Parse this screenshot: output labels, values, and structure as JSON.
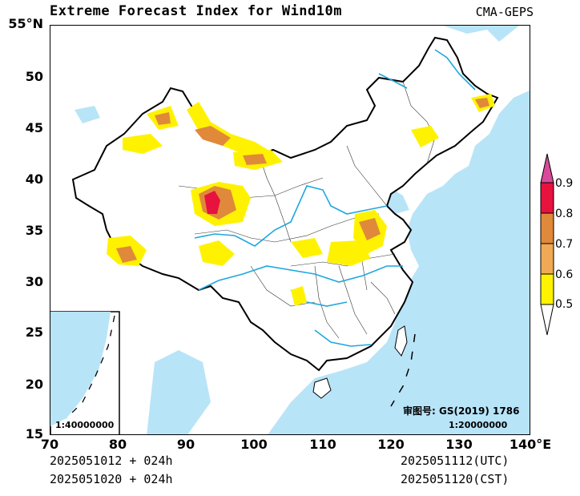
{
  "title": "Extreme Forecast Index for Wind10m",
  "model": "CMA-GEPS",
  "axes": {
    "lat_ticks": [
      "55°N",
      "50",
      "45",
      "40",
      "35",
      "30",
      "25",
      "20",
      "15"
    ],
    "lon_ticks": [
      "70",
      "80",
      "90",
      "100",
      "110",
      "120",
      "130",
      "140°E"
    ]
  },
  "colorbar": {
    "labels": [
      "0.9",
      "0.8",
      "0.7",
      "0.6",
      "0.5"
    ],
    "colors": [
      "#d94a9a",
      "#e8123e",
      "#e0893a",
      "#f0aa55",
      "#fff200"
    ]
  },
  "map_colors": {
    "sea": "#b8e4f8",
    "river": "#1ea7e0",
    "border": "#000000",
    "province": "#333333"
  },
  "inset_scale": "1:40000000",
  "approval_number": "审图号: GS(2019) 1786",
  "main_scale": "1:20000000",
  "footer": {
    "init_utc": "2025051012 + 024h",
    "init_cst": "2025051020 + 024h",
    "valid_utc": "2025051112(UTC)",
    "valid_cst": "2025051120(CST)"
  }
}
